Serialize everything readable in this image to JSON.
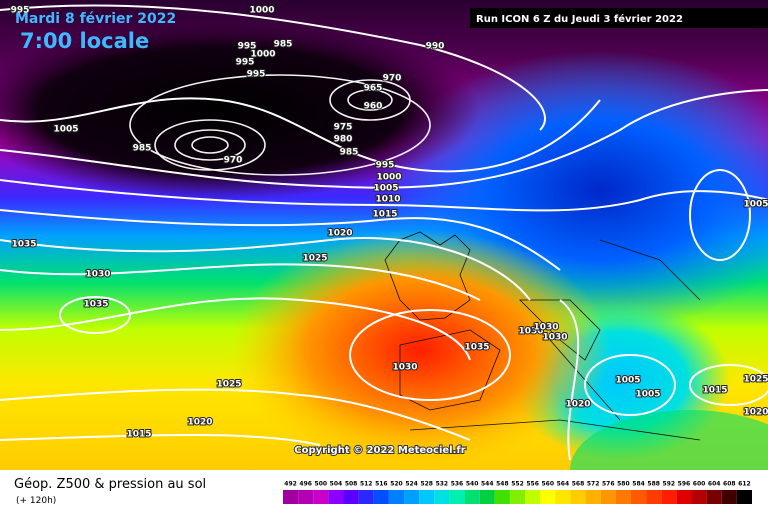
{
  "header": {
    "date": "Mardi 8 février 2022",
    "time": "7:00 locale",
    "run": "Run ICON 6 Z du Jeudi 3 février 2022"
  },
  "footer": {
    "title": "Géop. Z500 & pression au sol",
    "lead": "(+ 120h)",
    "copyright": "Copyright © 2022 Meteociel.fr"
  },
  "isobar_labels": [
    "995",
    "1000",
    "990",
    "995",
    "985",
    "1000",
    "995",
    "995",
    "970",
    "965",
    "960",
    "1005",
    "985",
    "975",
    "980",
    "985",
    "970",
    "995",
    "1000",
    "1005",
    "1010",
    "1015",
    "1005",
    "1035",
    "1020",
    "1025",
    "1030",
    "1035",
    "1035",
    "1030",
    "1030",
    "1030",
    "1030",
    "1025",
    "1025",
    "1005",
    "1005",
    "1015",
    "1020",
    "1020",
    "1015",
    "1020"
  ],
  "legend": {
    "values": [
      "492",
      "496",
      "500",
      "504",
      "508",
      "512",
      "516",
      "520",
      "524",
      "528",
      "532",
      "536",
      "540",
      "544",
      "548",
      "552",
      "556",
      "560",
      "564",
      "568",
      "572",
      "576",
      "580",
      "584",
      "588",
      "592",
      "596",
      "600",
      "604",
      "608",
      "612"
    ],
    "colors": [
      "#a000a0",
      "#b400b4",
      "#c800c8",
      "#8c00ff",
      "#5a00ff",
      "#2828ff",
      "#0050ff",
      "#0080ff",
      "#00a0ff",
      "#00c8ff",
      "#00e0e0",
      "#00f0b0",
      "#00e070",
      "#00d040",
      "#40e000",
      "#80f000",
      "#c0ff00",
      "#ffff00",
      "#ffe600",
      "#ffcc00",
      "#ffb000",
      "#ff9600",
      "#ff7800",
      "#ff5a00",
      "#ff3c00",
      "#ff1e00",
      "#e00000",
      "#b40000",
      "#780000",
      "#400000",
      "#000000"
    ]
  }
}
